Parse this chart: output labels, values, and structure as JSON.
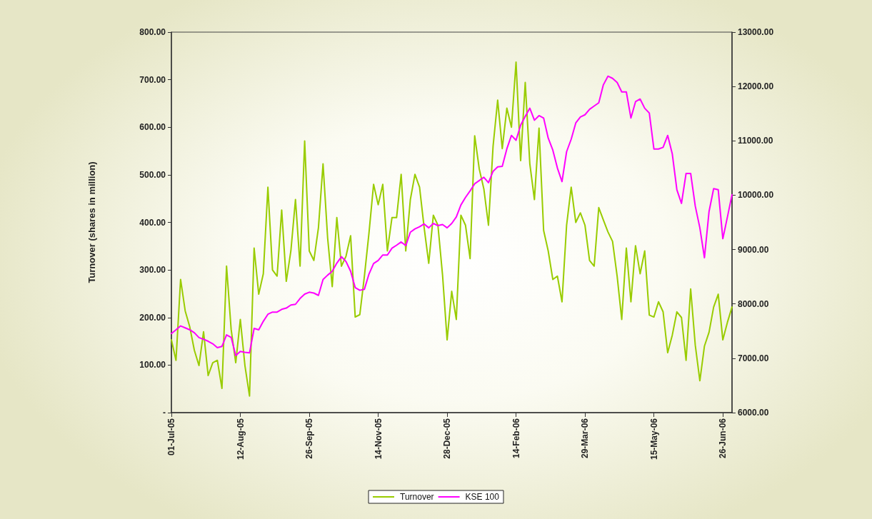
{
  "chart_data": {
    "type": "line",
    "ylabel": "Turnover (shares in million)",
    "categories": [
      "01-Jul-05",
      null,
      null,
      null,
      null,
      null,
      null,
      null,
      null,
      null,
      null,
      null,
      null,
      null,
      null,
      "12-Aug-05",
      null,
      null,
      null,
      null,
      null,
      null,
      null,
      null,
      null,
      null,
      null,
      null,
      null,
      null,
      "26-Sep-05",
      null,
      null,
      null,
      null,
      null,
      null,
      null,
      null,
      null,
      null,
      null,
      null,
      null,
      null,
      "14-Nov-05",
      null,
      null,
      null,
      null,
      null,
      null,
      null,
      null,
      null,
      null,
      null,
      null,
      null,
      null,
      "28-Dec-05",
      null,
      null,
      null,
      null,
      null,
      null,
      null,
      null,
      null,
      null,
      null,
      null,
      null,
      null,
      "14-Feb-06",
      null,
      null,
      null,
      null,
      null,
      null,
      null,
      null,
      null,
      null,
      null,
      null,
      null,
      null,
      "29-Mar-06",
      null,
      null,
      null,
      null,
      null,
      null,
      null,
      null,
      null,
      null,
      null,
      null,
      null,
      null,
      "15-May-06",
      null,
      null,
      null,
      null,
      null,
      null,
      null,
      null,
      null,
      null,
      null,
      null,
      null,
      null,
      "26-Jun-06",
      null,
      null
    ],
    "series": [
      {
        "name": "Turnover",
        "color": "#99cc00",
        "values": [
          153,
          110,
          280,
          214,
          180,
          131,
          99,
          170,
          78,
          105,
          110,
          51,
          308,
          175,
          105,
          196,
          99,
          35,
          346,
          249,
          292,
          474,
          300,
          287,
          426,
          276,
          340,
          448,
          308,
          571,
          340,
          320,
          389,
          523,
          367,
          265,
          410,
          308,
          329,
          372,
          201,
          206,
          287,
          378,
          480,
          437,
          480,
          340,
          410,
          410,
          501,
          340,
          448,
          501,
          474,
          389,
          314,
          415,
          394,
          290,
          153,
          255,
          196,
          415,
          394,
          324,
          582,
          512,
          470,
          394,
          560,
          657,
          555,
          640,
          600,
          737,
          530,
          694,
          523,
          448,
          598,
          383,
          340,
          280,
          287,
          233,
          394,
          474,
          400,
          420,
          394,
          320,
          308,
          431,
          405,
          380,
          360,
          287,
          196,
          346,
          233,
          351,
          292,
          340,
          205,
          201,
          233,
          212,
          126,
          163,
          212,
          200,
          110,
          260,
          142,
          67,
          140,
          169,
          222,
          249,
          153,
          190,
          222
        ]
      },
      {
        "name": "KSE 100",
        "color": "#ff00ff",
        "axis": "y2",
        "values": [
          7454,
          7524,
          7595,
          7560,
          7524,
          7470,
          7380,
          7350,
          7313,
          7266,
          7196,
          7219,
          7430,
          7384,
          7050,
          7126,
          7110,
          7100,
          7550,
          7524,
          7680,
          7810,
          7850,
          7850,
          7900,
          7923,
          7980,
          7993,
          8100,
          8180,
          8215,
          8200,
          8157,
          8450,
          8530,
          8600,
          8750,
          8870,
          8780,
          8600,
          8300,
          8251,
          8270,
          8550,
          8744,
          8800,
          8900,
          8900,
          9025,
          9080,
          9140,
          9072,
          9320,
          9380,
          9420,
          9471,
          9400,
          9480,
          9440,
          9460,
          9400,
          9480,
          9600,
          9820,
          9960,
          10080,
          10210,
          10270,
          10330,
          10230,
          10440,
          10520,
          10530,
          10854,
          11100,
          11010,
          11290,
          11450,
          11600,
          11380,
          11464,
          11420,
          11050,
          10830,
          10500,
          10250,
          10800,
          11030,
          11330,
          11440,
          11480,
          11580,
          11640,
          11700,
          12030,
          12190,
          12150,
          12074,
          11900,
          11900,
          11420,
          11720,
          11769,
          11600,
          11511,
          10850,
          10850,
          10880,
          11100,
          10760,
          10100,
          9850,
          10400,
          10400,
          9800,
          9400,
          8850,
          9700,
          10120,
          10100,
          9200,
          9600,
          10010
        ]
      }
    ],
    "ylim": [
      0,
      800
    ],
    "yticks": [
      {
        "value": 0,
        "label": "-"
      },
      {
        "value": 100,
        "label": "100.00"
      },
      {
        "value": 200,
        "label": "200.00"
      },
      {
        "value": 300,
        "label": "300.00"
      },
      {
        "value": 400,
        "label": "400.00"
      },
      {
        "value": 500,
        "label": "500.00"
      },
      {
        "value": 600,
        "label": "600.00"
      },
      {
        "value": 700,
        "label": "700.00"
      },
      {
        "value": 800,
        "label": "800.00"
      }
    ],
    "y2lim": [
      6000,
      13000
    ],
    "y2ticks": [
      {
        "value": 6000,
        "label": "6000.00"
      },
      {
        "value": 7000,
        "label": "7000.00"
      },
      {
        "value": 8000,
        "label": "8000.00"
      },
      {
        "value": 9000,
        "label": "9000.00"
      },
      {
        "value": 10000,
        "label": "10000.00"
      },
      {
        "value": 11000,
        "label": "11000.00"
      },
      {
        "value": 12000,
        "label": "12000.00"
      },
      {
        "value": 13000,
        "label": "13000.00"
      }
    ],
    "grid": false,
    "legend": "bottom",
    "marker": "none",
    "line_style": "solid"
  }
}
